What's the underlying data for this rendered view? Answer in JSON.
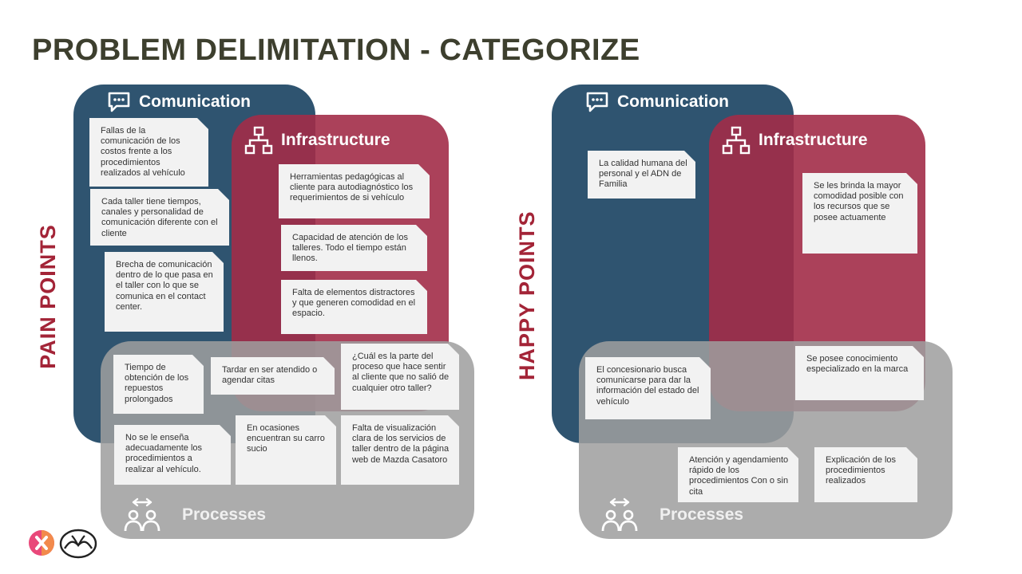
{
  "title": "PROBLEM DELIMITATION - CATEGORIZE",
  "pain": {
    "side_label": "PAIN POINTS",
    "comm_label": "Comunication",
    "infra_label": "Infrastructure",
    "proc_label": "Processes",
    "notes": [
      "Fallas de la comunicación de los costos frente a los procedimientos realizados al vehículo",
      "Cada taller tiene tiempos, canales y personalidad de comunicación diferente con el cliente",
      "Brecha de comunicación dentro de lo que pasa en el taller con lo que se comunica en el contact center.",
      "Herramientas pedagógicas al cliente para autodiagnóstico los requerimientos de si vehículo",
      "Capacidad de atención de los talleres. Todo el tiempo están llenos.",
      "Falta de elementos distractores y que generen comodidad en el espacio.",
      "Tiempo de obtención de los repuestos prolongados",
      "Tardar en ser atendido o agendar citas",
      "¿Cuál es la parte del proceso que hace sentir al cliente que no salió de cualquier otro taller?",
      "No se le enseña adecuadamente los procedimientos a realizar al vehículo.",
      "En ocasiones encuentran su carro sucio",
      "Falta de visualización clara de los servicios de taller dentro de la página web de Mazda Casatoro"
    ]
  },
  "happy": {
    "side_label": "HAPPY POINTS",
    "comm_label": "Comunication",
    "infra_label": "Infrastructure",
    "proc_label": "Processes",
    "notes": [
      "La calidad humana del personal y el ADN de Familia",
      "Se les brinda la mayor comodidad posible con los recursos que se posee actuamente",
      "El concesionario busca comunicarse para dar la información del estado del vehículo",
      "Se posee conocimiento especializado en la marca",
      "Atención y agendamiento rápido de los procedimientos Con o sin cita",
      "Explicación de los procedimientos realizados"
    ]
  },
  "colors": {
    "communication": "#2f5470",
    "infrastructure": "#a22c48",
    "processes": "#9e9e9e",
    "title": "#3d3f2e",
    "side_label": "#a32437"
  },
  "icons": [
    "chat-icon",
    "network-icon",
    "people-exchange-icon",
    "brand-x-logo",
    "mazda-logo"
  ]
}
